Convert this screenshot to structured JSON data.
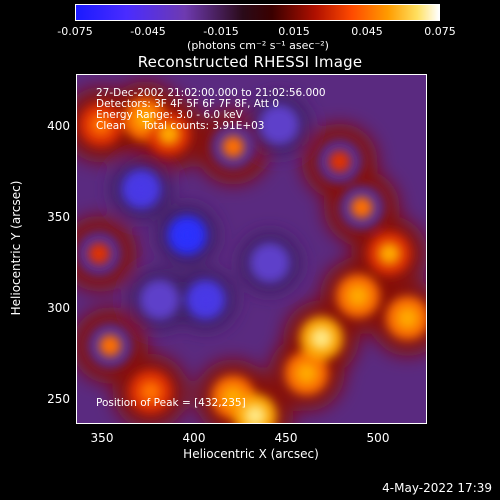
{
  "colorbar": {
    "ticks": [
      "-0.075",
      "-0.045",
      "-0.015",
      "0.015",
      "0.045",
      "0.075"
    ],
    "unit_text": "(photons cm⁻² s⁻¹ asec⁻²)",
    "range": [
      -0.075,
      0.075
    ]
  },
  "chart_data": {
    "type": "heatmap",
    "title": "Reconstructed RHESSI Image",
    "xlabel": "Heliocentric X (arcsec)",
    "ylabel": "Heliocentric Y (arcsec)",
    "xlim": [
      335,
      525
    ],
    "ylim": [
      233,
      422
    ],
    "xticks": [
      "350",
      "400",
      "450",
      "500"
    ],
    "yticks": [
      "400",
      "350",
      "300",
      "250"
    ],
    "zlim": [
      -0.075,
      0.075
    ],
    "colormap": "IDL red-temperature (blue-purple negative, red-yellow-white positive)",
    "peak": [
      432,
      235
    ],
    "hot_regions": [
      {
        "x": 348,
        "y": 395,
        "value": 0.05
      },
      {
        "x": 372,
        "y": 398,
        "value": 0.06
      },
      {
        "x": 385,
        "y": 390,
        "value": 0.055
      },
      {
        "x": 420,
        "y": 383,
        "value": 0.045
      },
      {
        "x": 347,
        "y": 325,
        "value": 0.04
      },
      {
        "x": 353,
        "y": 275,
        "value": 0.045
      },
      {
        "x": 375,
        "y": 250,
        "value": 0.05
      },
      {
        "x": 420,
        "y": 247,
        "value": 0.06
      },
      {
        "x": 432,
        "y": 237,
        "value": 0.07
      },
      {
        "x": 460,
        "y": 260,
        "value": 0.06
      },
      {
        "x": 468,
        "y": 279,
        "value": 0.07
      },
      {
        "x": 488,
        "y": 302,
        "value": 0.06
      },
      {
        "x": 505,
        "y": 325,
        "value": 0.055
      },
      {
        "x": 515,
        "y": 290,
        "value": 0.06
      },
      {
        "x": 490,
        "y": 350,
        "value": 0.045
      },
      {
        "x": 478,
        "y": 375,
        "value": 0.04
      }
    ],
    "cold_regions": [
      {
        "x": 370,
        "y": 360,
        "value": -0.06
      },
      {
        "x": 395,
        "y": 335,
        "value": -0.07
      },
      {
        "x": 405,
        "y": 300,
        "value": -0.06
      },
      {
        "x": 440,
        "y": 320,
        "value": -0.05
      },
      {
        "x": 380,
        "y": 300,
        "value": -0.05
      },
      {
        "x": 445,
        "y": 395,
        "value": -0.045
      }
    ]
  },
  "info": {
    "line1": "27-Dec-2002 21:02:00.000 to 21:02:56.000",
    "line2": "Detectors: 3F 4F 5F 6F 7F 8F, Att 0",
    "line3": "Energy Range: 3.0 - 6.0 keV",
    "line4": "Clean     Total counts: 3.91E+03",
    "peak_label": "Position of Peak = [432,235]"
  },
  "timestamp": "4-May-2022 17:39"
}
